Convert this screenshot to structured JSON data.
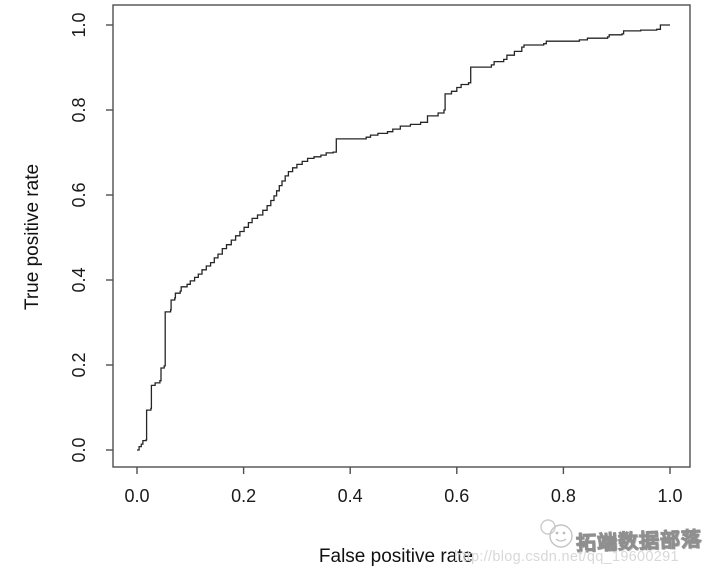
{
  "watermark": {
    "brand": "拓端数据部落",
    "url": "http://blog.csdn.net/qq_19600291",
    "logo": "mascot-logo-icon"
  },
  "colors": {
    "background": "#ffffff",
    "box": "#4f4f4f",
    "tick": "#4f4f4f",
    "curve": "#262626",
    "text": "#1a1a1a",
    "watermark_brand": "#8f8f8f",
    "watermark_url": "#d8d8d8"
  },
  "chart_data": {
    "type": "line",
    "subtype": "roc-step-curve",
    "title": "",
    "xlabel": "False positive rate",
    "ylabel": "True positive rate",
    "xlim": [
      0,
      1
    ],
    "ylim": [
      0,
      1
    ],
    "grid": false,
    "legend": null,
    "x_tick_values": [
      0.0,
      0.2,
      0.4,
      0.6,
      0.8,
      1.0
    ],
    "y_tick_values": [
      0.0,
      0.2,
      0.4,
      0.6,
      0.8,
      1.0
    ],
    "x_tick_labels": [
      "0.0",
      "0.2",
      "0.4",
      "0.6",
      "0.8",
      "1.0"
    ],
    "y_tick_labels": [
      "0.0",
      "0.2",
      "0.4",
      "0.6",
      "0.8",
      "1.0"
    ],
    "series": [
      {
        "name": "ROC curve",
        "color": "#262626",
        "points": [
          [
            0.0,
            0.0
          ],
          [
            0.004,
            0.008
          ],
          [
            0.008,
            0.014
          ],
          [
            0.011,
            0.022
          ],
          [
            0.017,
            0.024
          ],
          [
            0.018,
            0.094
          ],
          [
            0.026,
            0.098
          ],
          [
            0.027,
            0.152
          ],
          [
            0.034,
            0.158
          ],
          [
            0.043,
            0.163
          ],
          [
            0.045,
            0.193
          ],
          [
            0.051,
            0.198
          ],
          [
            0.053,
            0.325
          ],
          [
            0.063,
            0.33
          ],
          [
            0.064,
            0.353
          ],
          [
            0.071,
            0.358
          ],
          [
            0.072,
            0.369
          ],
          [
            0.081,
            0.374
          ],
          [
            0.083,
            0.384
          ],
          [
            0.094,
            0.39
          ],
          [
            0.1,
            0.398
          ],
          [
            0.108,
            0.406
          ],
          [
            0.115,
            0.414
          ],
          [
            0.122,
            0.424
          ],
          [
            0.13,
            0.433
          ],
          [
            0.138,
            0.441
          ],
          [
            0.145,
            0.452
          ],
          [
            0.152,
            0.461
          ],
          [
            0.16,
            0.474
          ],
          [
            0.168,
            0.483
          ],
          [
            0.177,
            0.494
          ],
          [
            0.185,
            0.504
          ],
          [
            0.193,
            0.514
          ],
          [
            0.201,
            0.524
          ],
          [
            0.209,
            0.535
          ],
          [
            0.216,
            0.545
          ],
          [
            0.226,
            0.553
          ],
          [
            0.236,
            0.564
          ],
          [
            0.244,
            0.575
          ],
          [
            0.251,
            0.587
          ],
          [
            0.257,
            0.598
          ],
          [
            0.262,
            0.61
          ],
          [
            0.267,
            0.622
          ],
          [
            0.272,
            0.633
          ],
          [
            0.278,
            0.645
          ],
          [
            0.284,
            0.655
          ],
          [
            0.292,
            0.664
          ],
          [
            0.3,
            0.672
          ],
          [
            0.31,
            0.679
          ],
          [
            0.32,
            0.686
          ],
          [
            0.332,
            0.69
          ],
          [
            0.345,
            0.694
          ],
          [
            0.355,
            0.699
          ],
          [
            0.368,
            0.701
          ],
          [
            0.374,
            0.732
          ],
          [
            0.43,
            0.736
          ],
          [
            0.438,
            0.741
          ],
          [
            0.452,
            0.745
          ],
          [
            0.47,
            0.749
          ],
          [
            0.48,
            0.755
          ],
          [
            0.494,
            0.762
          ],
          [
            0.513,
            0.766
          ],
          [
            0.532,
            0.771
          ],
          [
            0.545,
            0.786
          ],
          [
            0.565,
            0.793
          ],
          [
            0.576,
            0.8
          ],
          [
            0.578,
            0.838
          ],
          [
            0.59,
            0.844
          ],
          [
            0.6,
            0.853
          ],
          [
            0.608,
            0.86
          ],
          [
            0.622,
            0.864
          ],
          [
            0.626,
            0.901
          ],
          [
            0.665,
            0.906
          ],
          [
            0.67,
            0.914
          ],
          [
            0.688,
            0.919
          ],
          [
            0.694,
            0.929
          ],
          [
            0.708,
            0.938
          ],
          [
            0.722,
            0.948
          ],
          [
            0.726,
            0.953
          ],
          [
            0.763,
            0.956
          ],
          [
            0.768,
            0.962
          ],
          [
            0.83,
            0.965
          ],
          [
            0.845,
            0.969
          ],
          [
            0.883,
            0.972
          ],
          [
            0.886,
            0.977
          ],
          [
            0.91,
            0.979
          ],
          [
            0.913,
            0.986
          ],
          [
            0.945,
            0.988
          ],
          [
            0.975,
            0.99
          ],
          [
            0.982,
            1.0
          ],
          [
            1.0,
            1.0
          ]
        ]
      }
    ]
  }
}
